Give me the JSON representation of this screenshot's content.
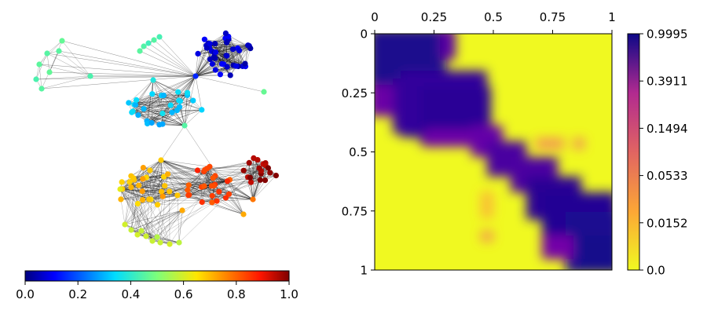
{
  "chart_data": [
    {
      "type": "network",
      "title": "",
      "node_value_range": [
        0.0,
        1.0
      ],
      "node_colormap": "jet",
      "colorbar": {
        "orientation": "horizontal",
        "placement": "bottom",
        "ticks": [
          0.0,
          0.2,
          0.4,
          0.6,
          0.8,
          1.0
        ],
        "tick_labels": [
          "0.0",
          "0.2",
          "0.4",
          "0.6",
          "0.8",
          "1.0"
        ]
      },
      "communities": [
        {
          "id": "c1",
          "value": 0.07,
          "size": 40
        },
        {
          "id": "c2",
          "value": 0.32,
          "size": 28
        },
        {
          "id": "c3",
          "value": 0.45,
          "size": 8
        },
        {
          "id": "c4",
          "value": 0.44,
          "size": 5
        },
        {
          "id": "c5",
          "value": 0.98,
          "size": 18
        },
        {
          "id": "c6",
          "value": 0.84,
          "size": 25
        },
        {
          "id": "c7",
          "value": 0.7,
          "size": 26
        },
        {
          "id": "c8",
          "value": 0.58,
          "size": 10
        }
      ]
    },
    {
      "type": "heatmap",
      "title": "",
      "colormap": "plasma_r",
      "x_range": [
        0,
        1
      ],
      "y_range": [
        0,
        1
      ],
      "y_inverted": true,
      "x_axis_position": "top",
      "x_ticks": [
        0,
        0.25,
        0.5,
        0.75,
        1
      ],
      "x_tick_labels": [
        "0",
        "0.25",
        "0.5",
        "0.75",
        "1"
      ],
      "y_ticks": [
        0,
        0.25,
        0.5,
        0.75,
        1
      ],
      "y_tick_labels": [
        "0",
        "0.25",
        "0.5",
        "0.75",
        "1"
      ],
      "colorbar": {
        "orientation": "vertical",
        "placement": "right",
        "tick_labels": [
          "0.9995",
          "0.3911",
          "0.1494",
          "0.0533",
          "0.0152",
          "0.0"
        ]
      },
      "blocks": [
        {
          "x0": 0.0,
          "x1": 0.28,
          "y0": 0.0,
          "y1": 0.26,
          "value": 0.92
        },
        {
          "x0": 0.2,
          "x1": 0.48,
          "y0": 0.23,
          "y1": 0.48,
          "value": 0.85
        },
        {
          "x0": 0.52,
          "x1": 0.72,
          "y0": 0.52,
          "y1": 0.72,
          "value": 0.75
        },
        {
          "x0": 0.7,
          "x1": 1.0,
          "y0": 0.7,
          "y1": 1.0,
          "value": 0.95
        }
      ]
    }
  ]
}
